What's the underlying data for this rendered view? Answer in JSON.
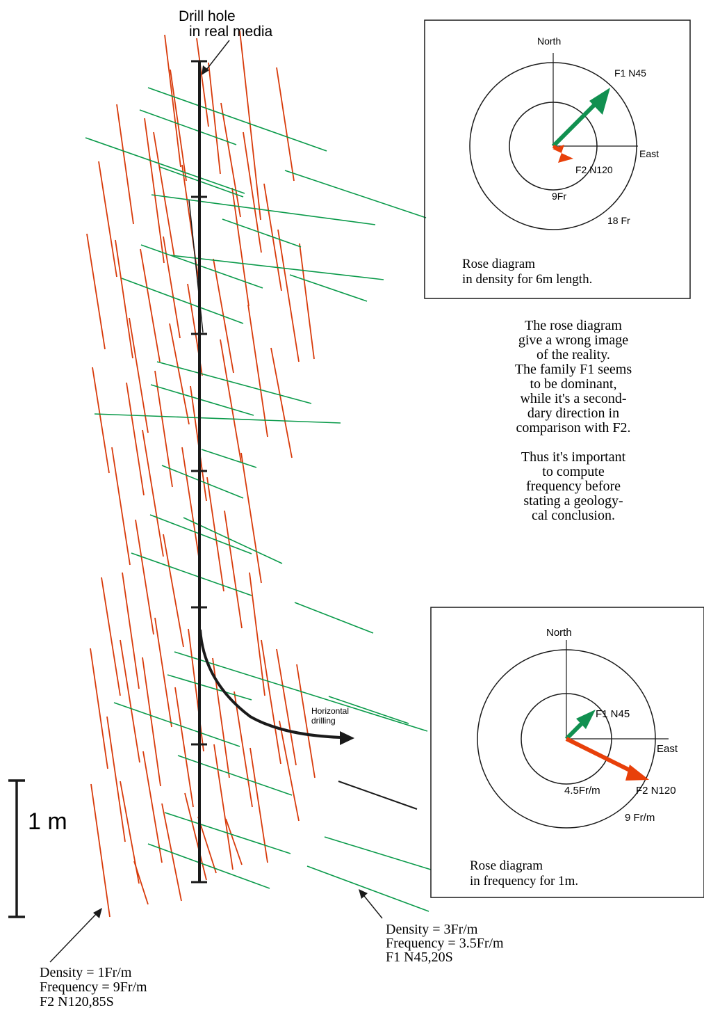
{
  "colors": {
    "f2_fracture": "#d83a0a",
    "f1_fracture": "#0a9a4a",
    "f2_arrow": "#e8400a",
    "f1_arrow": "#119050",
    "ink": "#1a1a1a"
  },
  "drill": {
    "label_line1": "Drill hole",
    "label_line2": "in  real  media",
    "horizontal_label_line1": "Horizontal",
    "horizontal_label_line2": "drilling"
  },
  "scale": {
    "label": "1 m"
  },
  "rose_density": {
    "north": "North",
    "east": "East",
    "f1": "F1 N45",
    "f2": "F2 N120",
    "inner": "9Fr",
    "outer": "18 Fr",
    "caption_line1": "Rose diagram",
    "caption_line2": "in density  for  6m length."
  },
  "rose_frequency": {
    "north": "North",
    "east": "East",
    "f1": "F1 N45",
    "f2": "F2 N120",
    "inner": "4.5Fr/m",
    "outer": "9 Fr/m",
    "caption_line1": "Rose diagram",
    "caption_line2": "in frequency  for  1m."
  },
  "explanation": {
    "lines": [
      "The rose diagram",
      "give a wrong image",
      "of the reality.",
      "The family F1 seems",
      "to be dominant,",
      "while  it's a second-",
      "dary  direction  in",
      "comparison with F2.",
      "",
      "Thus it's important",
      "to  compute",
      "frequency  before",
      "stating a geology-",
      "cal conclusion."
    ]
  },
  "f1_note": {
    "line1": "Density = 3Fr/m",
    "line2": "Frequency = 3.5Fr/m",
    "line3": "F1 N45,20S"
  },
  "f2_note": {
    "line1": "Density = 1Fr/m",
    "line2": "Frequency = 9Fr/m",
    "line3": "F2 N120,85S"
  }
}
